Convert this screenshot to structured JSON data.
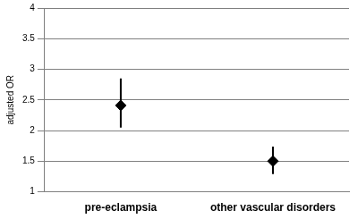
{
  "chart_data": {
    "type": "scatter",
    "categories": [
      "pre-eclampsia",
      "other vascular disorders"
    ],
    "values": [
      2.41,
      1.5
    ],
    "lower": [
      2.05,
      1.29
    ],
    "upper": [
      2.85,
      1.74
    ],
    "color": "#000000",
    "marker": "diamond",
    "y_label": "adjusted OR",
    "ylim": [
      1,
      4
    ],
    "yticks": [
      1,
      1.5,
      2,
      2.5,
      3,
      3.5,
      4
    ],
    "grid": true
  }
}
